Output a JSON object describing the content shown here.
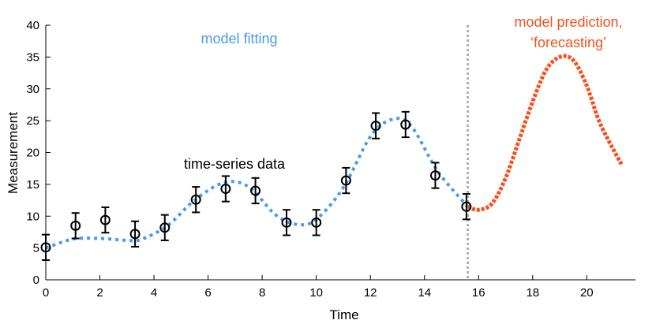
{
  "chart_data": {
    "type": "line",
    "xlabel": "Time",
    "ylabel": "Measurement",
    "xlim": [
      0,
      21.8
    ],
    "ylim": [
      0,
      40
    ],
    "xticks": [
      0,
      2,
      4,
      6,
      8,
      10,
      12,
      14,
      16,
      18,
      20
    ],
    "yticks": [
      0,
      5,
      10,
      15,
      20,
      25,
      30,
      35,
      40
    ],
    "grid": false,
    "annotations": {
      "fit": "model fitting",
      "data": "time-series data",
      "prediction_line1": "model prediction,",
      "prediction_line2": "‘forecasting’"
    },
    "colors": {
      "fit": "#4a9be8",
      "prediction": "#f4511e",
      "divider": "#a9b5b3",
      "data": "#000000"
    },
    "divider_x": 15.6,
    "data_points": {
      "x": [
        0,
        1.1,
        2.2,
        3.3,
        4.4,
        5.55,
        6.65,
        7.75,
        8.9,
        10,
        11.1,
        12.2,
        13.3,
        14.4,
        15.55
      ],
      "y": [
        5.1,
        8.5,
        9.4,
        7.2,
        8.2,
        12.6,
        14.3,
        14.0,
        9.0,
        9.0,
        15.6,
        24.2,
        24.4,
        16.4,
        11.5
      ],
      "error": 2
    },
    "fit_curve": {
      "x": [
        0,
        1,
        2,
        3,
        3.5,
        4.5,
        5.5,
        6.6,
        7.5,
        8.5,
        9.3,
        10,
        11,
        12,
        12.8,
        13.5,
        14.5,
        15.6
      ],
      "y": [
        5,
        6.4,
        6.5,
        6.2,
        6.3,
        8.5,
        12.5,
        15.3,
        14.6,
        10.2,
        8.7,
        9.5,
        14.5,
        22.5,
        25.2,
        24.2,
        17,
        11.5
      ]
    },
    "prediction_curve": {
      "x": [
        15.6,
        16,
        16.5,
        17,
        17.5,
        18,
        18.5,
        19,
        19.5,
        20,
        20.5,
        21.3
      ],
      "y": [
        11.5,
        11,
        12,
        16,
        22,
        28,
        33,
        35,
        34.5,
        30.5,
        24.5,
        18
      ]
    }
  }
}
